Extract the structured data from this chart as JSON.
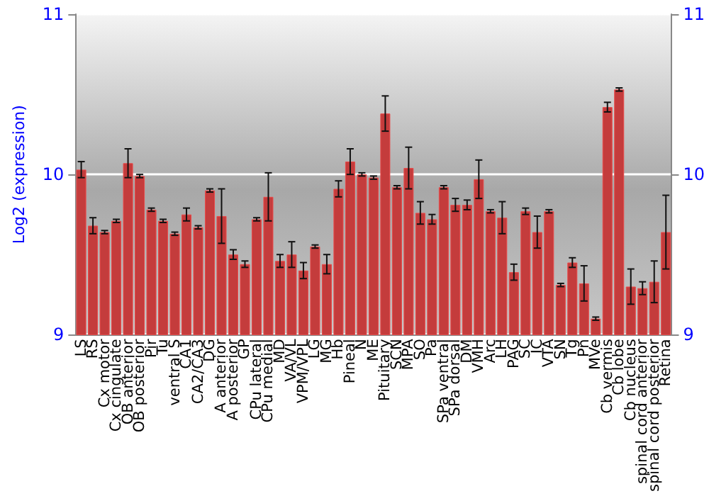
{
  "chart_data": {
    "type": "bar",
    "ylabel": "Log2 (expression)",
    "categories": [
      "LS",
      "RS",
      "Cx motor",
      "Cx cingulate",
      "OB anterior",
      "OB posterior",
      "Pir",
      "Tu",
      "ventral S",
      "CA1",
      "CA2/CA3",
      "DG",
      "A anterior",
      "A posterior",
      "GP",
      "CPu lateral",
      "CPu medial",
      "MD",
      "VA/VL",
      "VPM/VPL",
      "LG",
      "MG",
      "Hb",
      "Pineal",
      "N",
      "ME",
      "Pituitary",
      "SCN",
      "MPA",
      "SO",
      "Pa",
      "SPa ventral",
      "SPa dorsal",
      "DM",
      "VMH",
      "Arc",
      "LH",
      "PAG",
      "SC",
      "IC",
      "VTA",
      "SN",
      "Tg",
      "Pn",
      "MVe",
      "Cb vermis",
      "Cb lobe",
      "Cb nucleus",
      "spinal cord anterior",
      "spinal cord posterior",
      "Retina"
    ],
    "series": [
      {
        "color": "#c43c3c",
        "values": [
          10.03,
          9.68,
          9.64,
          9.71,
          10.07,
          9.99,
          9.78,
          9.71,
          9.63,
          9.75,
          9.67,
          9.9,
          9.74,
          9.5,
          9.44,
          9.72,
          9.86,
          9.46,
          9.5,
          9.4,
          9.55,
          9.44,
          9.91,
          10.08,
          10.0,
          9.98,
          10.38,
          9.92,
          10.04,
          9.76,
          9.72,
          9.92,
          9.81,
          9.81,
          9.97,
          9.77,
          9.73,
          9.39,
          9.77,
          9.64,
          9.77,
          9.31,
          9.45,
          9.32,
          9.1,
          10.42,
          10.53,
          9.3,
          9.29,
          9.33,
          9.64
        ],
        "errors": [
          0.05,
          0.05,
          0.01,
          0.01,
          0.09,
          0.01,
          0.01,
          0.01,
          0.01,
          0.04,
          0.01,
          0.01,
          0.17,
          0.03,
          0.02,
          0.01,
          0.15,
          0.04,
          0.08,
          0.05,
          0.01,
          0.06,
          0.05,
          0.08,
          0.01,
          0.01,
          0.11,
          0.01,
          0.13,
          0.07,
          0.03,
          0.01,
          0.04,
          0.03,
          0.12,
          0.01,
          0.1,
          0.05,
          0.02,
          0.1,
          0.01,
          0.01,
          0.03,
          0.11,
          0.01,
          0.03,
          0.01,
          0.11,
          0.04,
          0.13,
          0.23
        ]
      }
    ],
    "ylim": [
      9,
      11
    ],
    "yticks": [
      9,
      10,
      11
    ],
    "y2lim": [
      9,
      11
    ],
    "y2ticks": [
      9,
      10,
      11
    ],
    "grid": "y"
  }
}
